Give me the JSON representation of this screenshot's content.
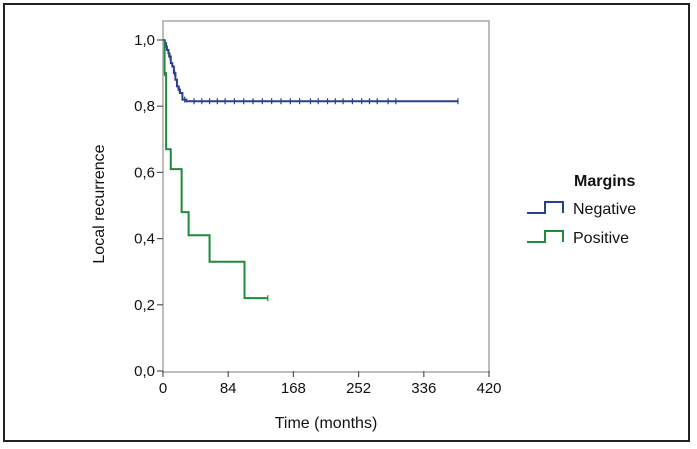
{
  "chart_data": {
    "type": "line",
    "title": "",
    "xlabel": "Time (months)",
    "ylabel": "Local recurrence",
    "xlim": [
      0,
      420
    ],
    "ylim": [
      0,
      1
    ],
    "x_ticks": [
      "0",
      "84",
      "168",
      "252",
      "336",
      "420"
    ],
    "x_tick_values": [
      0,
      84,
      168,
      252,
      336,
      420
    ],
    "y_ticks": [
      "0,0",
      "0,2",
      "0,4",
      "0,6",
      "0,8",
      "1,0"
    ],
    "y_tick_values": [
      0,
      0.2,
      0.4,
      0.6,
      0.8,
      1.0
    ],
    "grid": false,
    "legend": {
      "title": "Margins",
      "position": "right"
    },
    "series": [
      {
        "name": "Negative",
        "color": "#2b3f8f",
        "step": true,
        "x": [
          0,
          2,
          4,
          5,
          7,
          8,
          10,
          12,
          14,
          16,
          18,
          20,
          22,
          25,
          27,
          30,
          380
        ],
        "y": [
          1.0,
          0.99,
          0.98,
          0.97,
          0.96,
          0.95,
          0.93,
          0.92,
          0.9,
          0.88,
          0.86,
          0.85,
          0.84,
          0.82,
          0.82,
          0.815,
          0.815
        ],
        "censored_x": [
          3,
          9,
          15,
          21,
          28,
          40,
          50,
          60,
          70,
          80,
          92,
          104,
          116,
          128,
          140,
          152,
          164,
          176,
          190,
          200,
          212,
          222,
          232,
          244,
          256,
          266,
          276,
          290,
          300,
          380
        ]
      },
      {
        "name": "Positive",
        "color": "#1e8a3c",
        "step": true,
        "x": [
          0,
          2,
          4,
          10,
          24,
          33,
          45,
          60,
          105,
          135
        ],
        "y": [
          1.0,
          0.9,
          0.67,
          0.61,
          0.48,
          0.41,
          0.41,
          0.33,
          0.22,
          0.22
        ],
        "censored_x": [
          2,
          135
        ]
      }
    ]
  }
}
